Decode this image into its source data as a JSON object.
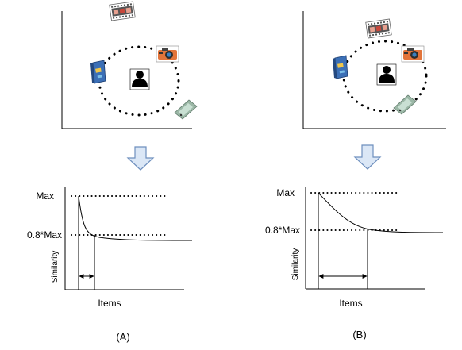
{
  "panels": [
    {
      "caption": "(A)",
      "max_label": "Max",
      "threshold_label": "0.8*Max",
      "y_axis_label": "Similarity",
      "x_axis_label": "Items"
    },
    {
      "caption": "(B)",
      "max_label": "Max",
      "threshold_label": "0.8*Max",
      "y_axis_label": "Similarity",
      "x_axis_label": "Items"
    }
  ],
  "icons": [
    "user-icon",
    "film-strip-icon",
    "camera-icon",
    "book-icon",
    "phone-icon"
  ],
  "colors": {
    "arrow_fill": "#dbe7f6",
    "arrow_stroke": "#6e8fbe",
    "book": "#3b6fb6",
    "camera": "#e2743a",
    "film": "#c9473a",
    "phone": "#9bb7a6"
  }
}
